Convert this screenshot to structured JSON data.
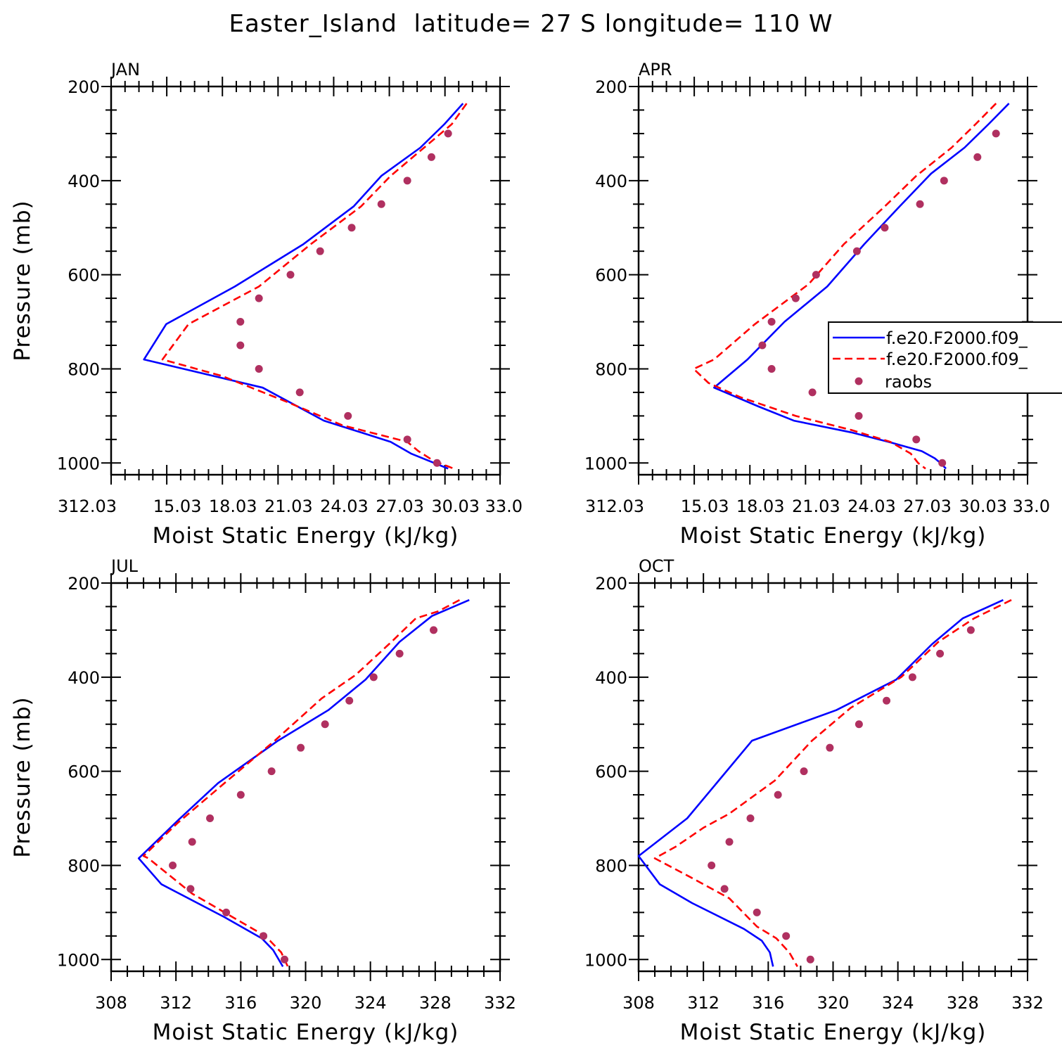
{
  "title": "Easter_Island  latitude= 27 S longitude= 110 W",
  "colors": {
    "model_solid": "#0000ff",
    "model_dashed": "#ff0000",
    "raobs": "#b03060",
    "axes": "#000000"
  },
  "legend": {
    "entries": [
      {
        "label": "f.e20.F2000.f09_",
        "style": "solid",
        "color": "#0000ff"
      },
      {
        "label": "f.e20.F2000.f09_",
        "style": "dashed",
        "color": "#ff0000"
      },
      {
        "label": "raobs",
        "style": "marker",
        "color": "#b03060"
      }
    ],
    "placement": "right, APR panel"
  },
  "chart_data": [
    {
      "type": "line",
      "title": "JAN",
      "xlabel": "Moist Static Energy (kJ/kg)",
      "ylabel": "Pressure (mb)",
      "xlim": [
        312.03,
        333.0
      ],
      "ylim": [
        1025,
        200
      ],
      "y_reversed": true,
      "xticks": [
        312.03,
        315.03,
        318.03,
        321.03,
        324.03,
        327.03,
        330.03,
        333.0
      ],
      "xtick_labels": [
        "312.03",
        "15.03",
        "18.03",
        "21.03",
        "24.03",
        "27.03",
        "30.03",
        "33.0"
      ],
      "yticks": [
        200,
        400,
        600,
        800,
        1000
      ],
      "ytick_labels": [
        "200",
        "400",
        "600",
        "800",
        "1000"
      ],
      "series": [
        {
          "style": "solid",
          "color": "#0000ff",
          "x": [
            331.0,
            330.0,
            328.7,
            326.6,
            325.1,
            322.4,
            318.7,
            315.0,
            313.8,
            320.2,
            323.5,
            327.1,
            328.2,
            330.2
          ],
          "y": [
            236,
            280,
            330,
            390,
            455,
            535,
            625,
            705,
            780,
            840,
            910,
            955,
            980,
            1012
          ]
        },
        {
          "style": "dashed",
          "color": "#ff0000",
          "x": [
            331.2,
            330.4,
            328.9,
            327.1,
            325.5,
            322.8,
            320.0,
            316.2,
            314.8,
            318.0,
            321.5,
            324.5,
            328.0,
            328.6,
            329.4,
            330.5
          ],
          "y": [
            236,
            280,
            330,
            390,
            455,
            535,
            625,
            705,
            780,
            815,
            870,
            920,
            955,
            975,
            995,
            1012
          ]
        }
      ],
      "points": {
        "color": "#b03060",
        "x": [
          330.2,
          329.3,
          328.0,
          326.6,
          325.0,
          323.3,
          321.7,
          320.0,
          319.0,
          319.0,
          320.0,
          322.2,
          324.8,
          328.0,
          329.6
        ],
        "y": [
          300,
          350,
          400,
          450,
          500,
          550,
          600,
          650,
          700,
          750,
          800,
          850,
          900,
          950,
          1000
        ]
      }
    },
    {
      "type": "line",
      "title": "APR",
      "xlabel": "Moist Static Energy (kJ/kg)",
      "ylabel": "",
      "xlim": [
        312.03,
        333.0
      ],
      "ylim": [
        1025,
        200
      ],
      "y_reversed": true,
      "xticks": [
        312.03,
        315.03,
        318.03,
        321.03,
        324.03,
        327.03,
        330.03,
        333.0
      ],
      "xtick_labels": [
        "312.03",
        "15.03",
        "18.03",
        "21.03",
        "24.03",
        "27.03",
        "30.03",
        "33.0"
      ],
      "yticks": [
        200,
        400,
        600,
        800,
        1000
      ],
      "ytick_labels": [
        "200",
        "400",
        "600",
        "800",
        "1000"
      ],
      "series": [
        {
          "style": "solid",
          "color": "#0000ff",
          "x": [
            332.0,
            330.9,
            329.6,
            327.8,
            326.1,
            324.2,
            322.2,
            319.9,
            317.9,
            316.1,
            318.5,
            320.4,
            323.5,
            325.5,
            327.3,
            328.0,
            328.3,
            328.6
          ],
          "y": [
            236,
            280,
            330,
            385,
            455,
            535,
            625,
            700,
            780,
            840,
            880,
            910,
            935,
            955,
            975,
            990,
            1000,
            1012
          ]
        },
        {
          "style": "dashed",
          "color": "#ff0000",
          "x": [
            331.3,
            330.2,
            328.9,
            327.0,
            325.3,
            323.1,
            321.2,
            318.3,
            316.1,
            315.0,
            315.8,
            317.5,
            320.5,
            323.5,
            325.6,
            326.7,
            327.1,
            327.5
          ],
          "y": [
            236,
            280,
            330,
            390,
            455,
            535,
            620,
            705,
            780,
            800,
            830,
            860,
            900,
            930,
            955,
            980,
            1000,
            1012
          ]
        }
      ],
      "points": {
        "color": "#b03060",
        "x": [
          331.3,
          330.3,
          328.5,
          327.2,
          325.3,
          323.8,
          321.6,
          320.5,
          319.2,
          318.7,
          319.2,
          321.4,
          323.9,
          327.0,
          328.4
        ],
        "y": [
          300,
          350,
          400,
          450,
          500,
          550,
          600,
          650,
          700,
          750,
          800,
          850,
          900,
          950,
          1000
        ]
      }
    },
    {
      "type": "line",
      "title": "JUL",
      "xlabel": "Moist Static Energy (kJ/kg)",
      "ylabel": "Pressure (mb)",
      "xlim": [
        308,
        332
      ],
      "ylim": [
        1025,
        200
      ],
      "y_reversed": true,
      "xticks": [
        308,
        312,
        316,
        320,
        324,
        328,
        332
      ],
      "xtick_labels": [
        "308",
        "312",
        "316",
        "320",
        "324",
        "328",
        "332"
      ],
      "yticks": [
        200,
        400,
        600,
        800,
        1000
      ],
      "ytick_labels": [
        "200",
        "400",
        "600",
        "800",
        "1000"
      ],
      "series": [
        {
          "style": "solid",
          "color": "#0000ff",
          "x": [
            330.1,
            327.8,
            325.8,
            323.7,
            321.4,
            318.3,
            314.6,
            312.1,
            309.7,
            311.1,
            315.0,
            317.3,
            318.0,
            318.6
          ],
          "y": [
            236,
            270,
            325,
            405,
            470,
            535,
            625,
            705,
            785,
            840,
            910,
            955,
            980,
            1015
          ]
        },
        {
          "style": "dashed",
          "color": "#ff0000",
          "x": [
            329.5,
            328.2,
            326.8,
            325.3,
            323.1,
            321.0,
            318.1,
            315.0,
            312.1,
            310.0,
            310.3,
            313.0,
            317.0,
            317.8,
            318.5,
            318.9
          ],
          "y": [
            236,
            260,
            275,
            325,
            395,
            445,
            535,
            625,
            710,
            780,
            785,
            860,
            940,
            960,
            985,
            1015
          ]
        }
      ],
      "points": {
        "color": "#b03060",
        "x": [
          327.9,
          325.8,
          324.2,
          322.7,
          321.2,
          319.7,
          317.9,
          316.0,
          314.1,
          313.0,
          311.8,
          312.9,
          315.1,
          317.4,
          318.7
        ],
        "y": [
          300,
          350,
          400,
          450,
          500,
          550,
          600,
          650,
          700,
          750,
          800,
          850,
          900,
          950,
          1000
        ]
      }
    },
    {
      "type": "line",
      "title": "OCT",
      "xlabel": "Moist Static Energy (kJ/kg)",
      "ylabel": "",
      "xlim": [
        308,
        332
      ],
      "ylim": [
        1025,
        200
      ],
      "y_reversed": true,
      "xticks": [
        308,
        312,
        316,
        320,
        324,
        328,
        332
      ],
      "xtick_labels": [
        "308",
        "312",
        "316",
        "320",
        "324",
        "328",
        "332"
      ],
      "yticks": [
        200,
        400,
        600,
        800,
        1000
      ],
      "ytick_labels": [
        "200",
        "400",
        "600",
        "800",
        "1000"
      ],
      "series": [
        {
          "style": "solid",
          "color": "#0000ff",
          "x": [
            330.5,
            328.0,
            326.1,
            323.9,
            320.2,
            315.0,
            311.0,
            308.0,
            309.3,
            311.3,
            314.5,
            315.6,
            316.1,
            316.3
          ],
          "y": [
            236,
            275,
            330,
            405,
            470,
            535,
            700,
            780,
            840,
            880,
            935,
            960,
            985,
            1015
          ]
        },
        {
          "style": "dashed",
          "color": "#ff0000",
          "x": [
            331.0,
            328.7,
            326.5,
            324.2,
            321.1,
            318.7,
            316.4,
            313.6,
            312.0,
            310.3,
            309.0,
            311.2,
            313.6,
            315.3,
            316.5,
            317.3,
            317.8
          ],
          "y": [
            236,
            275,
            325,
            400,
            465,
            535,
            620,
            690,
            720,
            760,
            785,
            825,
            870,
            930,
            955,
            985,
            1015
          ]
        }
      ],
      "points": {
        "color": "#b03060",
        "x": [
          328.5,
          326.6,
          324.9,
          323.3,
          321.6,
          319.8,
          318.2,
          316.6,
          314.9,
          313.6,
          312.5,
          313.3,
          315.3,
          317.1,
          318.6
        ],
        "y": [
          300,
          350,
          400,
          450,
          500,
          550,
          600,
          650,
          700,
          750,
          800,
          850,
          900,
          950,
          1000
        ]
      }
    }
  ]
}
